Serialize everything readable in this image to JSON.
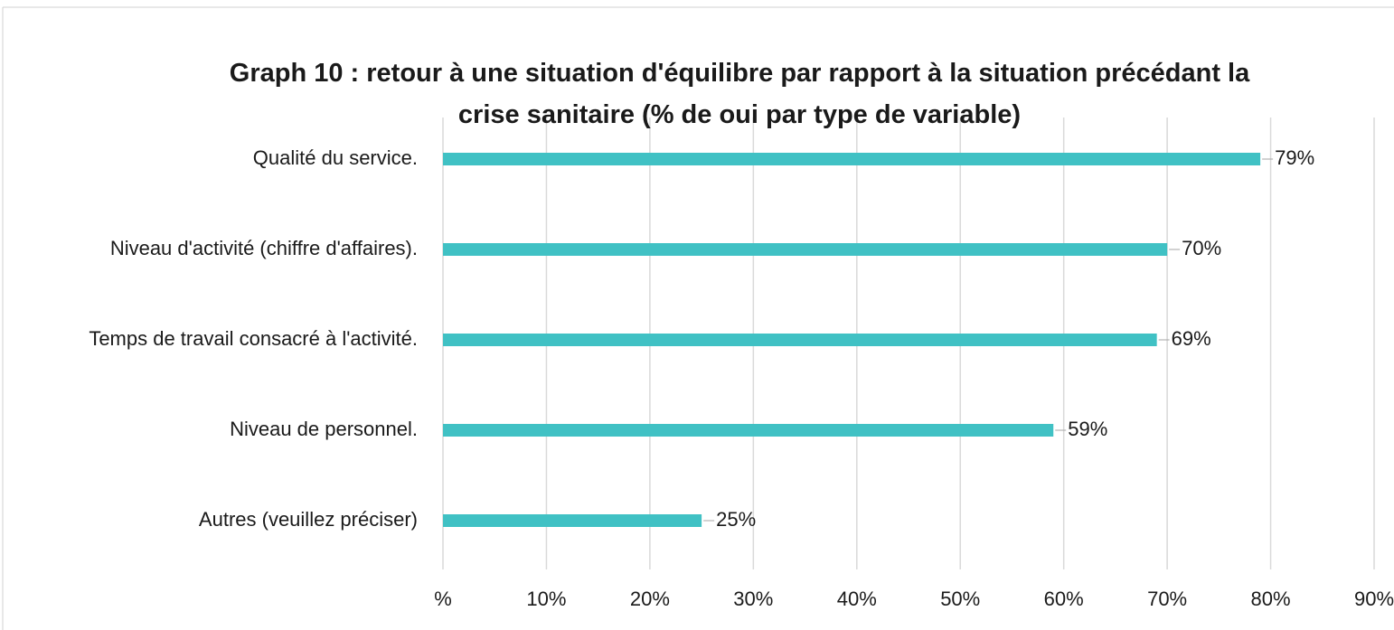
{
  "chart_data": {
    "type": "bar",
    "orientation": "horizontal",
    "title": "Graph 10 : retour à une situation d'équilibre par rapport à la situation précédant la crise sanitaire (% de oui par type de variable)",
    "categories": [
      "Qualité du service.",
      "Niveau d'activité (chiffre d'affaires).",
      "Temps de travail consacré à l'activité.",
      "Niveau de personnel.",
      "Autres (veuillez préciser)"
    ],
    "values": [
      79,
      70,
      69,
      59,
      25
    ],
    "value_labels": [
      "79%",
      "70%",
      "69%",
      "59%",
      "25%"
    ],
    "color": "#40c1c4",
    "xlim": [
      0,
      90
    ],
    "xticks": [
      {
        "value": 0,
        "label": "%"
      },
      {
        "value": 10,
        "label": "10%"
      },
      {
        "value": 20,
        "label": "20%"
      },
      {
        "value": 30,
        "label": "30%"
      },
      {
        "value": 40,
        "label": "40%"
      },
      {
        "value": 50,
        "label": "50%"
      },
      {
        "value": 60,
        "label": "60%"
      },
      {
        "value": 70,
        "label": "70%"
      },
      {
        "value": 80,
        "label": "80%"
      },
      {
        "value": 90,
        "label": "90%"
      }
    ],
    "grid": true
  }
}
